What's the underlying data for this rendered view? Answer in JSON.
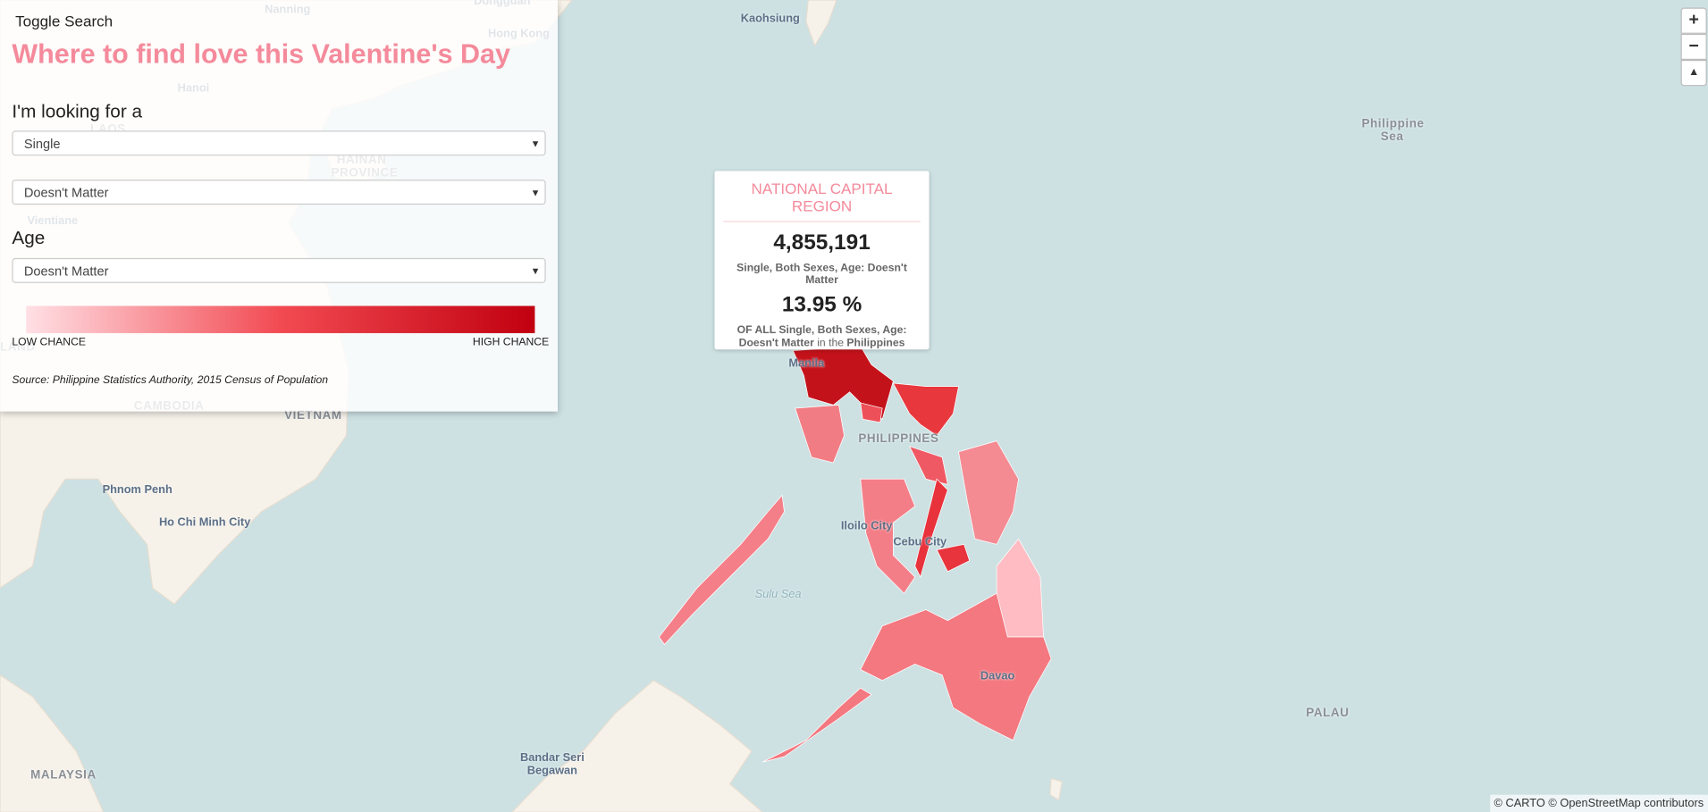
{
  "header": {
    "toggle": "Toggle Search",
    "title": "Where to find love this Valentine's Day"
  },
  "form": {
    "looking_label": "I'm looking for a",
    "status_select": "Single",
    "sex_select": "Doesn't Matter",
    "age_label": "Age",
    "age_select": "Doesn't Matter"
  },
  "legend": {
    "low": "LOW CHANCE",
    "high": "HIGH CHANCE"
  },
  "source": "Source: Philippine Statistics Authority, 2015 Census of Population",
  "tooltip": {
    "region": "NATIONAL CAPITAL REGION",
    "count": "4,855,191",
    "count_desc": "Single, Both Sexes, Age: Doesn't Matter",
    "percent": "13.95 %",
    "percent_desc": {
      "prefix": "OF ALL Single, Both Sexes, Age: Doesn't Matter",
      "middle": "in the",
      "country": "Philippines"
    }
  },
  "zoom": {
    "in": "+",
    "out": "−"
  },
  "attribution": "© CARTO © OpenStreetMap contributors",
  "map": {
    "labels": [
      "Nanning",
      "Dongguan",
      "Hong Kong",
      "Kaohsiung",
      "Hanoi",
      "LAOS",
      "HAINAN PROVINCE",
      "Vientiane",
      "Philippine Sea",
      "LAND",
      "CAMBODIA",
      "VIETNAM",
      "Phnom Penh",
      "Ho Chi Minh City",
      "Manila",
      "PHILIPPINES",
      "Iloilo City",
      "Cebu City",
      "Sulu Sea",
      "Davao",
      "PALAU",
      "MALAYSIA",
      "Bandar Seri Begawan"
    ]
  }
}
